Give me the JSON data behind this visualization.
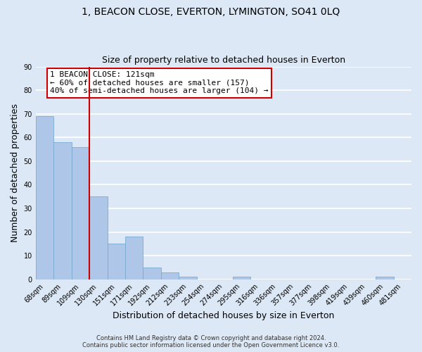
{
  "title": "1, BEACON CLOSE, EVERTON, LYMINGTON, SO41 0LQ",
  "subtitle": "Size of property relative to detached houses in Everton",
  "xlabel": "Distribution of detached houses by size in Everton",
  "ylabel": "Number of detached properties",
  "bar_labels": [
    "68sqm",
    "89sqm",
    "109sqm",
    "130sqm",
    "151sqm",
    "171sqm",
    "192sqm",
    "212sqm",
    "233sqm",
    "254sqm",
    "274sqm",
    "295sqm",
    "316sqm",
    "336sqm",
    "357sqm",
    "377sqm",
    "398sqm",
    "419sqm",
    "439sqm",
    "460sqm",
    "481sqm"
  ],
  "bar_values": [
    69,
    58,
    56,
    35,
    15,
    18,
    5,
    3,
    1,
    0,
    0,
    1,
    0,
    0,
    0,
    0,
    0,
    0,
    0,
    1,
    0
  ],
  "bar_color": "#aec6e8",
  "bar_edge_color": "#7aaad0",
  "background_color": "#dce8f5",
  "grid_color": "#ffffff",
  "vline_color": "#cc0000",
  "ylim": [
    0,
    90
  ],
  "yticks": [
    0,
    10,
    20,
    30,
    40,
    50,
    60,
    70,
    80,
    90
  ],
  "annotation_text": "1 BEACON CLOSE: 121sqm\n← 60% of detached houses are smaller (157)\n40% of semi-detached houses are larger (104) →",
  "annotation_box_color": "#ffffff",
  "annotation_box_edge": "#cc0000",
  "footer_line1": "Contains HM Land Registry data © Crown copyright and database right 2024.",
  "footer_line2": "Contains public sector information licensed under the Open Government Licence v3.0.",
  "title_fontsize": 10,
  "subtitle_fontsize": 9,
  "tick_fontsize": 7,
  "ylabel_fontsize": 9,
  "xlabel_fontsize": 9,
  "footer_fontsize": 6,
  "annotation_fontsize": 8
}
